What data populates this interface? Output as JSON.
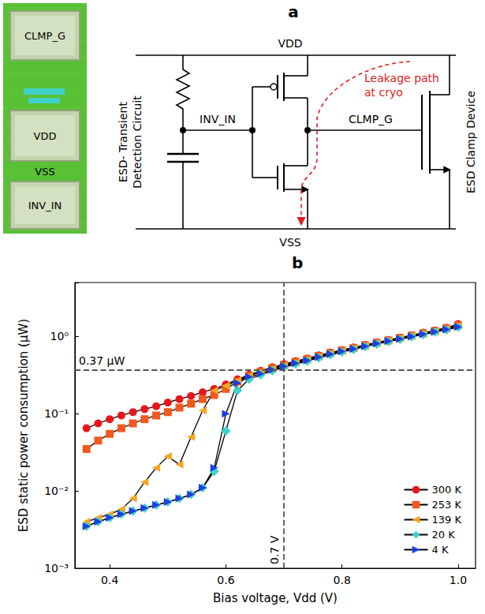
{
  "diagram": {
    "panel_label": "a",
    "chip_labels": [
      "CLMP_G",
      "VDD",
      "VSS",
      "INV_IN"
    ],
    "rail_top": "VDD",
    "rail_bottom": "VSS",
    "node_input": "INV_IN",
    "node_output": "CLMP_G",
    "detection_circuit": "ESD- Transient Detection Circuit",
    "clamp_device": "ESD Clamp Device",
    "leakage": "Leakage path at cryo"
  },
  "chart_data": {
    "type": "line",
    "panel_label": "b",
    "xlabel": "Bias voltage, Vdd (V)",
    "ylabel": "ESD static power consumption (μW)",
    "log": "y",
    "grid": false,
    "legend": "lower right",
    "xlim": [
      0.34,
      1.03
    ],
    "xticks": [
      0.4,
      0.6,
      0.8,
      {
        "value": 1,
        "label": "1.0"
      }
    ],
    "ylim": [
      0.001,
      5
    ],
    "yticks": [
      {
        "value": 0.001,
        "label": "10⁻³"
      },
      {
        "value": 0.01,
        "label": "10⁻²"
      },
      {
        "value": 0.1,
        "label": "10⁻¹"
      },
      {
        "value": 1,
        "label": "10⁰"
      }
    ],
    "x": [
      0.36,
      0.38,
      0.4,
      0.42,
      0.44,
      0.46,
      0.48,
      0.5,
      0.52,
      0.54,
      0.56,
      0.58,
      0.6,
      0.62,
      0.64,
      0.66,
      0.68,
      0.7,
      0.72,
      0.74,
      0.76,
      0.78,
      0.8,
      0.82,
      0.84,
      0.86,
      0.88,
      0.9,
      0.92,
      0.94,
      0.96,
      0.98,
      1.0
    ],
    "series": [
      {
        "name": "300 K",
        "color": "#e8151b",
        "marker": "circle",
        "values": [
          0.065,
          0.075,
          0.085,
          0.095,
          0.105,
          0.115,
          0.125,
          0.14,
          0.155,
          0.17,
          0.19,
          0.21,
          0.24,
          0.28,
          0.32,
          0.36,
          0.4,
          0.44,
          0.48,
          0.52,
          0.57,
          0.62,
          0.67,
          0.72,
          0.78,
          0.84,
          0.9,
          0.97,
          1.04,
          1.12,
          1.2,
          1.3,
          1.45
        ]
      },
      {
        "name": "253 K",
        "color": "#f25a1d",
        "marker": "square",
        "values": [
          0.035,
          0.045,
          0.055,
          0.065,
          0.075,
          0.085,
          0.095,
          0.105,
          0.12,
          0.135,
          0.155,
          0.175,
          0.21,
          0.26,
          0.31,
          0.35,
          0.39,
          0.43,
          0.47,
          0.51,
          0.56,
          0.61,
          0.66,
          0.71,
          0.77,
          0.83,
          0.89,
          0.96,
          1.03,
          1.1,
          1.18,
          1.28,
          1.4
        ]
      },
      {
        "name": "139 K",
        "color": "#f6a623",
        "marker": "triangle-left",
        "values": [
          0.004,
          0.0045,
          0.005,
          0.0058,
          0.008,
          0.013,
          0.02,
          0.028,
          0.022,
          0.05,
          0.11,
          0.2,
          0.23,
          0.27,
          0.31,
          0.35,
          0.38,
          0.42,
          0.46,
          0.5,
          0.55,
          0.6,
          0.65,
          0.7,
          0.76,
          0.82,
          0.88,
          0.95,
          1.02,
          1.09,
          1.17,
          1.26,
          1.37
        ]
      },
      {
        "name": "20 K",
        "color": "#3dd1c9",
        "marker": "diamond",
        "values": [
          0.0035,
          0.004,
          0.0045,
          0.005,
          0.0055,
          0.006,
          0.0066,
          0.0072,
          0.008,
          0.009,
          0.011,
          0.018,
          0.06,
          0.2,
          0.28,
          0.32,
          0.36,
          0.4,
          0.44,
          0.48,
          0.53,
          0.58,
          0.63,
          0.68,
          0.74,
          0.8,
          0.86,
          0.92,
          0.99,
          1.06,
          1.14,
          1.22,
          1.32
        ]
      },
      {
        "name": "4 K",
        "color": "#1f3fe0",
        "marker": "triangle-right",
        "values": [
          0.0035,
          0.004,
          0.0045,
          0.005,
          0.0055,
          0.006,
          0.0066,
          0.0072,
          0.008,
          0.009,
          0.011,
          0.02,
          0.1,
          0.25,
          0.3,
          0.33,
          0.37,
          0.41,
          0.45,
          0.49,
          0.54,
          0.59,
          0.64,
          0.69,
          0.75,
          0.81,
          0.87,
          0.93,
          1.0,
          1.07,
          1.15,
          1.23,
          1.33
        ]
      }
    ],
    "annotations": [
      {
        "axis": "y",
        "value": 0.37,
        "label": "0.37 μW"
      },
      {
        "axis": "x",
        "value": 0.7,
        "label": "0.7 V"
      }
    ]
  }
}
